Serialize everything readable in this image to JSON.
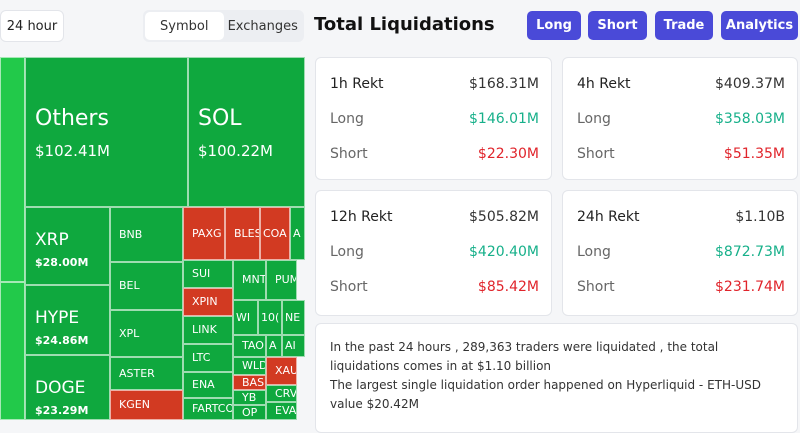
{
  "controls": {
    "timeframe": "24 hour",
    "tabs": [
      "Symbol",
      "Exchanges"
    ]
  },
  "header": {
    "title": "Total Liquidations",
    "buttons": [
      "Long",
      "Short",
      "Trade",
      "Analytics"
    ]
  },
  "treemap": {
    "tiles": [
      {
        "label": null,
        "color": "#22c94a"
      },
      {
        "label": null,
        "color": "#22c94a"
      },
      {
        "label": "Others",
        "value": "$102.41M",
        "color": "#0fa83e"
      },
      {
        "label": "SOL",
        "value": "$100.22M",
        "color": "#0fa83e"
      },
      {
        "label": "XRP",
        "value": "$28.00M",
        "color": "#0fa83e"
      },
      {
        "label": "HYPE",
        "value": "$24.86M",
        "color": "#0fa83e"
      },
      {
        "label": "DOGE",
        "value": "$23.29M",
        "color": "#0fa83e"
      },
      {
        "label": "BNB",
        "color": "#0fa83e"
      },
      {
        "label": "BEL",
        "color": "#0fa83e"
      },
      {
        "label": "XPL",
        "color": "#0fa83e"
      },
      {
        "label": "ASTER",
        "color": "#0fa83e"
      },
      {
        "label": "KGEN",
        "color": "#d23a22"
      },
      {
        "label": "PAXG",
        "color": "#d23a22"
      },
      {
        "label": "BLES",
        "color": "#d23a22"
      },
      {
        "label": "COA",
        "color": "#d23a22"
      },
      {
        "label": "A",
        "color": "#0fa83e"
      },
      {
        "label": "SUI",
        "color": "#0fa83e"
      },
      {
        "label": "XPIN",
        "color": "#d23a22"
      },
      {
        "label": "LINK",
        "color": "#0fa83e"
      },
      {
        "label": "LTC",
        "color": "#0fa83e"
      },
      {
        "label": "ENA",
        "color": "#0fa83e"
      },
      {
        "label": "FARTCO",
        "color": "#0fa83e"
      },
      {
        "label": "MNT",
        "color": "#0fa83e"
      },
      {
        "label": "PUM",
        "color": "#0fa83e"
      },
      {
        "label": "WI",
        "color": "#0fa83e"
      },
      {
        "label": "10(",
        "color": "#0fa83e"
      },
      {
        "label": "NE",
        "color": "#0fa83e"
      },
      {
        "label": "TAO",
        "color": "#0fa83e"
      },
      {
        "label": "A",
        "color": "#0fa83e"
      },
      {
        "label": "AI",
        "color": "#0fa83e"
      },
      {
        "label": "WLD",
        "color": "#0fa83e"
      },
      {
        "label": "XAU",
        "color": "#d23a22"
      },
      {
        "label": "BAS",
        "color": "#d23a22"
      },
      {
        "label": "CRV",
        "color": "#0fa83e"
      },
      {
        "label": "YB",
        "color": "#0fa83e"
      },
      {
        "label": "EVA",
        "color": "#0fa83e"
      },
      {
        "label": "OP",
        "color": "#0fa83e"
      }
    ]
  },
  "cards": [
    {
      "title": "1h Rekt",
      "total": "$168.31M",
      "rows": [
        {
          "label": "Long",
          "value": "$146.01M"
        },
        {
          "label": "Short",
          "value": "$22.30M"
        }
      ]
    },
    {
      "title": "4h Rekt",
      "total": "$409.37M",
      "rows": [
        {
          "label": "Long",
          "value": "$358.03M"
        },
        {
          "label": "Short",
          "value": "$51.35M"
        }
      ]
    },
    {
      "title": "12h Rekt",
      "total": "$505.82M",
      "rows": [
        {
          "label": "Long",
          "value": "$420.40M"
        },
        {
          "label": "Short",
          "value": "$85.42M"
        }
      ]
    },
    {
      "title": "24h Rekt",
      "total": "$1.10B",
      "rows": [
        {
          "label": "Long",
          "value": "$872.73M"
        },
        {
          "label": "Short",
          "value": "$231.74M"
        }
      ]
    }
  ],
  "summary": {
    "lines": [
      "In the past 24 hours , 289,363 traders were liquidated , the total liquidations comes in at $1.10 billion",
      "The largest single liquidation order happened on Hyperliquid - ETH-USD value $20.42M"
    ]
  }
}
